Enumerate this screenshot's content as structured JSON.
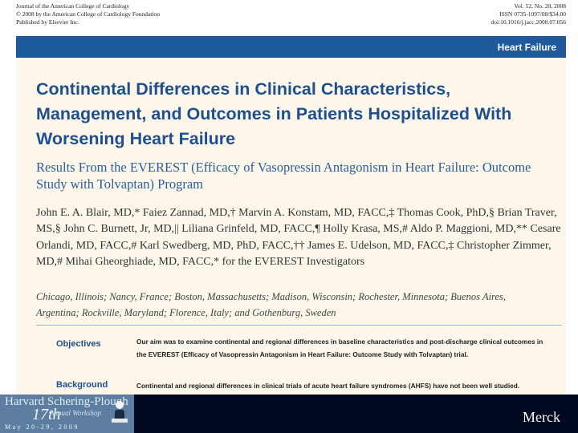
{
  "journal_header": {
    "left_lines": [
      "Journal of the American College of Cardiology",
      "© 2008 by the American College of Cardiology Foundation",
      "Published by Elsevier Inc."
    ],
    "right_lines": [
      "Vol. 52, No. 20, 2008",
      "ISSN 0735-1097/08/$34.00",
      "doi:10.1016/j.jacc.2008.07.056"
    ]
  },
  "section_label": "Heart Failure",
  "article": {
    "title": "Continental Differences in Clinical Characteristics, Management, and Outcomes in Patients Hospitalized With Worsening Heart Failure",
    "subtitle": "Results From the EVEREST (Efficacy of Vasopressin Antagonism in Heart Failure: Outcome Study with Tolvaptan) Program",
    "authors": "John E. A. Blair, MD,* Faiez Zannad, MD,† Marvin A. Konstam, MD, FACC,‡ Thomas Cook, PhD,§ Brian Traver, MS,§ John C. Burnett, Jr, MD,|| Liliana Grinfeld, MD, FACC,¶ Holly Krasa, MS,# Aldo P. Maggioni, MD,** Cesare Orlandi, MD, FACC,# Karl Swedberg, MD, PhD, FACC,†† James E. Udelson, MD, FACC,‡ Christopher Zimmer, MD,# Mihai Gheorghiade, MD, FACC,* for the EVEREST Investigators",
    "affiliations": "Chicago, Illinois; Nancy, France; Boston, Massachusetts; Madison, Wisconsin; Rochester, Minnesota; Buenos Aires, Argentina; Rockville, Maryland; Florence, Italy; and Gothenburg, Sweden"
  },
  "abstract": {
    "objectives_label": "Objectives",
    "objectives_text": "Our aim was to examine continental and regional differences in baseline characteristics and post-discharge clinical outcomes in the EVEREST (Efficacy of Vasopressin Antagonism in Heart Failure: Outcome Study with Tolvaptan) trial.",
    "background_label": "Background",
    "background_text": "Continental and regional differences in clinical trials of acute heart failure syndromes (AHFS) have not been well studied."
  },
  "footer": {
    "logo_line1": "Harvard Schering-Plough",
    "logo_ordinal": "17th",
    "logo_line2": "Annual Workshop",
    "logo_dates": "May 20-29, 2009",
    "company": "Merck"
  },
  "colors": {
    "title_blue": "#1e4f8e",
    "section_bar": "#1f5a9c",
    "content_bg": "#fdf7eb",
    "footer_bg": "#000820"
  }
}
